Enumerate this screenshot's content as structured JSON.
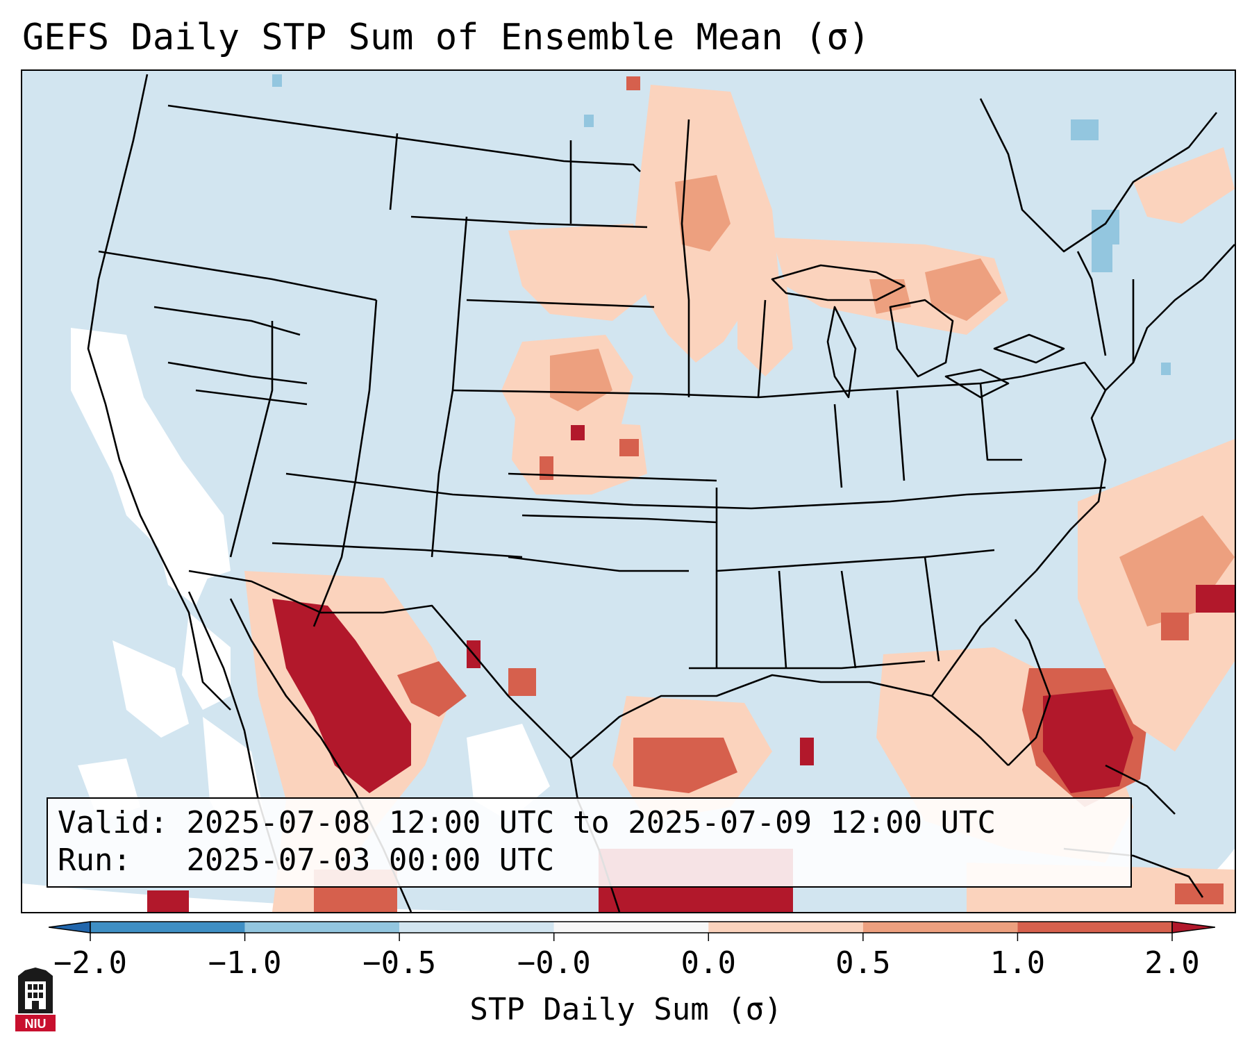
{
  "title": "GEFS Daily STP Sum of Ensemble Mean (σ)",
  "info": {
    "valid_label": "Valid:",
    "valid_value": "2025-07-08 12:00 UTC to 2025-07-09 12:00 UTC",
    "run_label": "Run:",
    "run_value": "2025-07-03 00:00 UTC"
  },
  "colorbar": {
    "label": "STP Daily Sum (σ)",
    "ticks": [
      "−2.0",
      "−1.0",
      "−0.5",
      "−0.0",
      "0.0",
      "0.5",
      "1.0",
      "2.0"
    ],
    "bins": [
      {
        "range": "-2.0 to -1.0",
        "color": "#3f8fc4"
      },
      {
        "range": "-1.0 to -0.5",
        "color": "#93c6df"
      },
      {
        "range": "-0.5 to -0.0",
        "color": "#d2e5f0"
      },
      {
        "range": "-0.0 to 0.0",
        "color": "#f7f7f7"
      },
      {
        "range": "0.0 to 0.5",
        "color": "#fbd3bd"
      },
      {
        "range": "0.5 to 1.0",
        "color": "#eda07f"
      },
      {
        "range": "1.0 to 2.0",
        "color": "#d6604d"
      }
    ],
    "under_color": "#2166ac",
    "over_color": "#b2182b"
  },
  "map": {
    "projection_region": "CONUS",
    "background_color": "#d2e5f0",
    "missing_color": "#ffffff",
    "anomaly_regions": [
      {
        "name": "northern-plains-upper-midwest",
        "level": "0.0 to 1.0"
      },
      {
        "name": "great-lakes",
        "level": "0.0 to 1.0"
      },
      {
        "name": "central-plains",
        "level": "0.0 to 2.0"
      },
      {
        "name": "northwest-mexico",
        "level": "1.0 to >2.0"
      },
      {
        "name": "florida-peninsula",
        "level": "1.0 to >2.0"
      },
      {
        "name": "gulf-of-mexico",
        "level": "0.5 to >2.0"
      },
      {
        "name": "western-atlantic",
        "level": "0.0 to >2.0"
      }
    ]
  },
  "logo": {
    "text": "NIU",
    "icon": "niu-logo-icon"
  }
}
